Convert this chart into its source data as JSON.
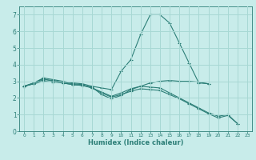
{
  "xlabel": "Humidex (Indice chaleur)",
  "bg_color": "#c8ecea",
  "line_color": "#2d7f78",
  "grid_color": "#a8d8d4",
  "xlim": [
    -0.5,
    23.5
  ],
  "ylim": [
    0,
    7.5
  ],
  "xticks": [
    0,
    1,
    2,
    3,
    4,
    5,
    6,
    7,
    8,
    9,
    10,
    11,
    12,
    13,
    14,
    15,
    16,
    17,
    18,
    19,
    20,
    21,
    22,
    23
  ],
  "yticks": [
    0,
    1,
    2,
    3,
    4,
    5,
    6,
    7
  ],
  "series": [
    {
      "x": [
        0,
        1,
        2,
        3,
        4,
        5,
        6,
        7,
        8,
        9,
        10,
        11,
        12,
        13,
        14,
        15,
        16,
        17,
        18,
        19
      ],
      "y": [
        2.7,
        2.9,
        3.2,
        3.1,
        3.0,
        2.9,
        2.85,
        2.7,
        2.6,
        2.5,
        3.6,
        4.3,
        5.8,
        7.0,
        7.0,
        6.5,
        5.3,
        4.1,
        2.9,
        2.85
      ]
    },
    {
      "x": [
        0,
        1,
        2,
        3,
        4,
        5,
        6,
        7,
        8,
        9,
        10,
        11,
        12,
        13,
        14,
        15,
        16,
        17,
        18,
        19
      ],
      "y": [
        2.7,
        2.9,
        3.15,
        3.0,
        2.9,
        2.8,
        2.75,
        2.65,
        2.2,
        1.95,
        2.15,
        2.5,
        2.7,
        2.9,
        3.0,
        3.05,
        3.0,
        3.0,
        2.95,
        2.85
      ]
    },
    {
      "x": [
        0,
        1,
        2,
        3,
        4,
        5,
        6,
        7,
        8,
        9,
        10,
        11,
        12,
        13,
        14,
        15,
        16,
        17,
        18,
        19,
        20,
        21,
        22
      ],
      "y": [
        2.7,
        2.85,
        3.1,
        3.05,
        2.95,
        2.85,
        2.8,
        2.6,
        2.35,
        2.1,
        2.3,
        2.55,
        2.7,
        2.65,
        2.6,
        2.3,
        2.0,
        1.7,
        1.4,
        1.1,
        0.9,
        1.0,
        0.45
      ]
    },
    {
      "x": [
        0,
        1,
        2,
        3,
        4,
        5,
        6,
        7,
        8,
        9,
        10,
        11,
        12,
        13,
        14,
        15,
        16,
        17,
        18,
        19,
        20,
        21,
        22
      ],
      "y": [
        2.7,
        2.85,
        3.0,
        2.95,
        2.9,
        2.8,
        2.75,
        2.6,
        2.3,
        2.05,
        2.2,
        2.4,
        2.55,
        2.5,
        2.45,
        2.2,
        1.95,
        1.65,
        1.35,
        1.05,
        0.8,
        0.95,
        0.45
      ]
    }
  ]
}
